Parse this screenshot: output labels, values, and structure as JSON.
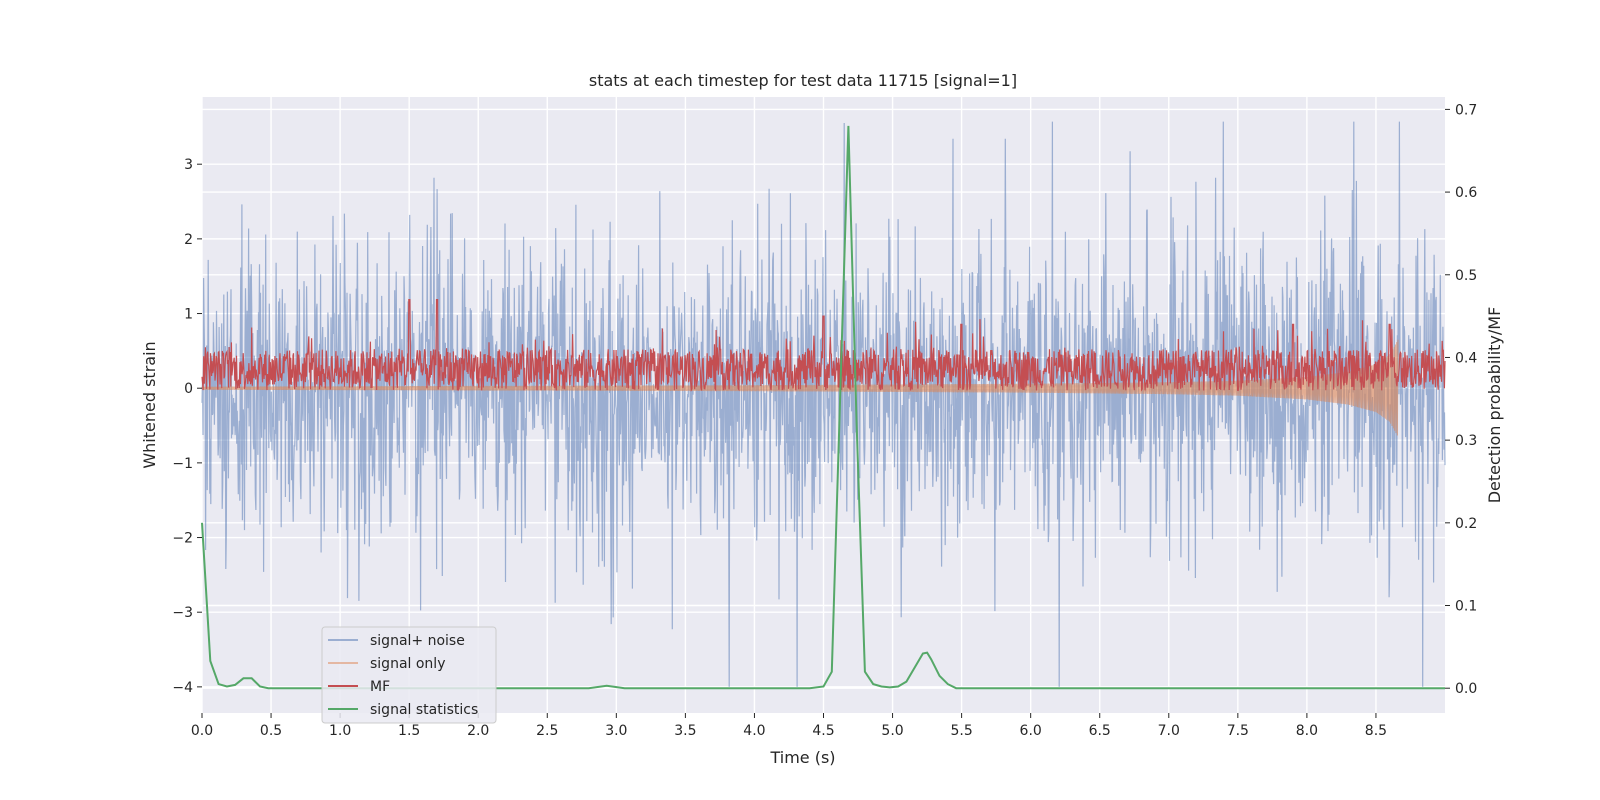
{
  "chart_data": {
    "type": "line",
    "title": "stats at each timestep for test data 11715 [signal=1]",
    "xlabel": "Time (s)",
    "ylabel_left": "Whitened strain",
    "ylabel_right": "Detection probability/MF",
    "xlim": [
      0.0,
      9.0
    ],
    "ylim_left": [
      -4.35,
      3.9
    ],
    "ylim_right": [
      -0.03,
      0.715
    ],
    "x_ticks": [
      "0.0",
      "0.5",
      "1.0",
      "1.5",
      "2.0",
      "2.5",
      "3.0",
      "3.5",
      "4.0",
      "4.5",
      "5.0",
      "5.5",
      "6.0",
      "6.5",
      "7.0",
      "7.5",
      "8.0",
      "8.5"
    ],
    "y_left_ticks": [
      "−4",
      "−3",
      "−2",
      "−1",
      "0",
      "1",
      "2",
      "3"
    ],
    "y_right_ticks": [
      "0.0",
      "0.1",
      "0.2",
      "0.3",
      "0.4",
      "0.5",
      "0.6",
      "0.7"
    ],
    "grid": true,
    "legend_position": "lower-left",
    "series": [
      {
        "name": "signal+ noise",
        "axis": "left",
        "color": "#4c72b0",
        "description_values": "noise strain, amplitude approx ±1.5 typical with spikes between -4 and 3.6",
        "x_range": [
          0.0,
          9.0
        ],
        "peak_max": 3.57,
        "peak_min": -4.0
      },
      {
        "name": "signal only",
        "axis": "left",
        "color": "#dd8452",
        "x_range": [
          0.0,
          8.66
        ],
        "values_note": "chirp growing towards merger",
        "x": [
          0.0,
          2.0,
          4.0,
          6.0,
          7.0,
          7.5,
          8.0,
          8.3,
          8.5,
          8.6,
          8.66
        ],
        "amplitude": [
          0.02,
          0.03,
          0.04,
          0.06,
          0.08,
          0.1,
          0.15,
          0.22,
          0.32,
          0.45,
          0.65
        ]
      },
      {
        "name": "MF",
        "axis": "right",
        "color": "#c44e52",
        "x_range": [
          0.0,
          9.0
        ],
        "baseline": 0.38,
        "band": [
          0.36,
          0.41
        ],
        "peak_x": [
          1.5,
          1.7,
          4.5,
          5.5,
          7.9,
          8.6
        ],
        "peak_y": [
          0.47,
          0.47,
          0.45,
          0.44,
          0.44,
          0.44
        ]
      },
      {
        "name": "signal statistics",
        "axis": "right",
        "color": "#55a868",
        "x": [
          0.0,
          0.06,
          0.12,
          0.18,
          0.24,
          0.3,
          0.36,
          0.42,
          0.48,
          0.6,
          1.0,
          2.0,
          2.5,
          2.8,
          2.93,
          3.06,
          3.5,
          4.0,
          4.4,
          4.5,
          4.56,
          4.62,
          4.68,
          4.74,
          4.8,
          4.86,
          4.92,
          4.98,
          5.04,
          5.1,
          5.16,
          5.22,
          5.25,
          5.28,
          5.34,
          5.4,
          5.46,
          5.5,
          6.0,
          7.0,
          8.0,
          9.0
        ],
        "y": [
          0.2,
          0.033,
          0.005,
          0.002,
          0.004,
          0.012,
          0.012,
          0.002,
          0.0,
          0.0,
          0.0,
          0.0,
          0.0,
          0.0,
          0.003,
          0.0,
          0.0,
          0.0,
          0.0,
          0.002,
          0.02,
          0.35,
          0.68,
          0.32,
          0.02,
          0.005,
          0.002,
          0.001,
          0.002,
          0.008,
          0.025,
          0.042,
          0.043,
          0.035,
          0.015,
          0.005,
          0.0,
          0.0,
          0.0,
          0.0,
          0.0,
          0.0
        ]
      }
    ]
  }
}
